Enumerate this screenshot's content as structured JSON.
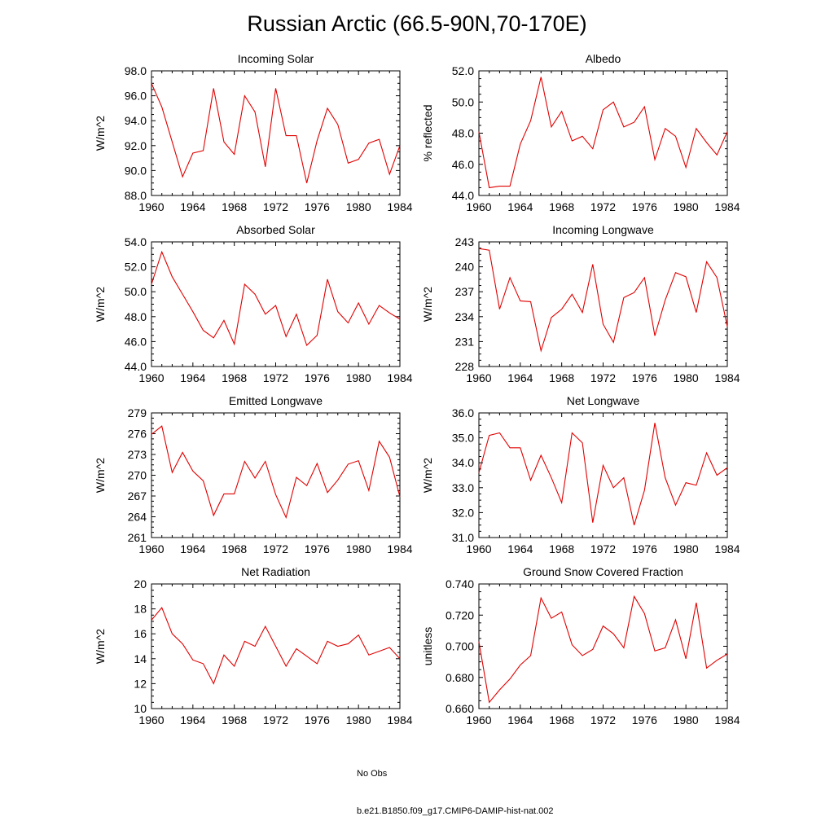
{
  "title": "Russian Arctic (66.5-90N,70-170E)",
  "colors": {
    "model_line": "#e00000",
    "obs_line": "#6666cc",
    "frame": "#000000"
  },
  "legend": [
    {
      "label": "No Obs",
      "style": "dashed",
      "color": "#6666cc"
    },
    {
      "label": "b.e21.B1850.f09_g17.CMIP6-DAMIP-hist-nat.002",
      "style": "solid",
      "color": "#e00000"
    }
  ],
  "chart_data": [
    {
      "type": "line",
      "title": "Incoming Solar",
      "ylabel": "W/m^2",
      "xlim": [
        1960,
        1984
      ],
      "ylim": [
        88,
        98
      ],
      "yticks": [
        88,
        90,
        92,
        94,
        96,
        98
      ],
      "ytick_labels": [
        "88.0",
        "90.0",
        "92.0",
        "94.0",
        "96.0",
        "98.0"
      ],
      "xticks": [
        1960,
        1964,
        1968,
        1972,
        1976,
        1980,
        1984
      ],
      "x": [
        1960,
        1961,
        1962,
        1963,
        1964,
        1965,
        1966,
        1967,
        1968,
        1969,
        1970,
        1971,
        1972,
        1973,
        1974,
        1975,
        1976,
        1977,
        1978,
        1979,
        1980,
        1981,
        1982,
        1983,
        1984
      ],
      "series": [
        {
          "values": [
            97.0,
            95.1,
            92.3,
            89.5,
            91.4,
            91.6,
            96.6,
            92.3,
            91.3,
            96.0,
            94.7,
            90.3,
            96.6,
            92.8,
            92.8,
            89.0,
            92.4,
            95.0,
            93.7,
            90.6,
            90.9,
            92.2,
            92.5,
            89.7,
            92.0
          ]
        }
      ]
    },
    {
      "type": "line",
      "title": "Albedo",
      "ylabel": "% reflected",
      "xlim": [
        1960,
        1984
      ],
      "ylim": [
        44,
        52
      ],
      "yticks": [
        44,
        46,
        48,
        50,
        52
      ],
      "ytick_labels": [
        "44.0",
        "46.0",
        "48.0",
        "50.0",
        "52.0"
      ],
      "xticks": [
        1960,
        1964,
        1968,
        1972,
        1976,
        1980,
        1984
      ],
      "x": [
        1960,
        1961,
        1962,
        1963,
        1964,
        1965,
        1966,
        1967,
        1968,
        1969,
        1970,
        1971,
        1972,
        1973,
        1974,
        1975,
        1976,
        1977,
        1978,
        1979,
        1980,
        1981,
        1982,
        1983,
        1984
      ],
      "series": [
        {
          "values": [
            48.1,
            44.5,
            44.6,
            44.6,
            47.3,
            48.8,
            51.6,
            48.4,
            49.4,
            47.5,
            47.8,
            47.0,
            49.5,
            50.0,
            48.4,
            48.7,
            49.7,
            46.3,
            48.3,
            47.8,
            45.8,
            48.3,
            47.4,
            46.6,
            48.1
          ]
        }
      ]
    },
    {
      "type": "line",
      "title": "Absorbed Solar",
      "ylabel": "W/m^2",
      "xlim": [
        1960,
        1984
      ],
      "ylim": [
        44,
        54
      ],
      "yticks": [
        44,
        46,
        48,
        50,
        52,
        54
      ],
      "ytick_labels": [
        "44.0",
        "46.0",
        "48.0",
        "50.0",
        "52.0",
        "54.0"
      ],
      "xticks": [
        1960,
        1964,
        1968,
        1972,
        1976,
        1980,
        1984
      ],
      "x": [
        1960,
        1961,
        1962,
        1963,
        1964,
        1965,
        1966,
        1967,
        1968,
        1969,
        1970,
        1971,
        1972,
        1973,
        1974,
        1975,
        1976,
        1977,
        1978,
        1979,
        1980,
        1981,
        1982,
        1983,
        1984
      ],
      "series": [
        {
          "values": [
            50.6,
            53.2,
            51.2,
            49.8,
            48.4,
            46.9,
            46.3,
            47.7,
            45.8,
            50.6,
            49.8,
            48.2,
            48.9,
            46.4,
            48.2,
            45.7,
            46.5,
            51.0,
            48.4,
            47.5,
            49.1,
            47.4,
            48.9,
            48.3,
            47.8
          ]
        }
      ]
    },
    {
      "type": "line",
      "title": "Incoming Longwave",
      "ylabel": "W/m^2",
      "xlim": [
        1960,
        1984
      ],
      "ylim": [
        228,
        243
      ],
      "yticks": [
        228,
        231,
        234,
        237,
        240,
        243
      ],
      "ytick_labels": [
        "228",
        "231",
        "234",
        "237",
        "240",
        "243"
      ],
      "xticks": [
        1960,
        1964,
        1968,
        1972,
        1976,
        1980,
        1984
      ],
      "x": [
        1960,
        1961,
        1962,
        1963,
        1964,
        1965,
        1966,
        1967,
        1968,
        1969,
        1970,
        1971,
        1972,
        1973,
        1974,
        1975,
        1976,
        1977,
        1978,
        1979,
        1980,
        1981,
        1982,
        1983,
        1984
      ],
      "series": [
        {
          "values": [
            242.2,
            242.0,
            234.9,
            238.7,
            235.9,
            235.8,
            229.9,
            233.9,
            234.9,
            236.7,
            234.5,
            240.3,
            233.1,
            230.9,
            236.3,
            236.9,
            238.7,
            231.7,
            236.0,
            239.3,
            238.8,
            234.5,
            240.6,
            238.7,
            232.8
          ]
        }
      ]
    },
    {
      "type": "line",
      "title": "Emitted Longwave",
      "ylabel": "W/m^2",
      "xlim": [
        1960,
        1984
      ],
      "ylim": [
        261,
        279
      ],
      "yticks": [
        261,
        264,
        267,
        270,
        273,
        276,
        279
      ],
      "ytick_labels": [
        "261",
        "264",
        "267",
        "270",
        "273",
        "276",
        "279"
      ],
      "xticks": [
        1960,
        1964,
        1968,
        1972,
        1976,
        1980,
        1984
      ],
      "x": [
        1960,
        1961,
        1962,
        1963,
        1964,
        1965,
        1966,
        1967,
        1968,
        1969,
        1970,
        1971,
        1972,
        1973,
        1974,
        1975,
        1976,
        1977,
        1978,
        1979,
        1980,
        1981,
        1982,
        1983,
        1984
      ],
      "series": [
        {
          "values": [
            275.9,
            277.1,
            270.4,
            273.3,
            270.6,
            269.2,
            264.2,
            267.3,
            267.3,
            272.0,
            269.6,
            272.0,
            267.2,
            263.9,
            269.7,
            268.5,
            271.7,
            267.5,
            269.3,
            271.6,
            272.1,
            267.8,
            274.9,
            272.6,
            266.9
          ]
        }
      ]
    },
    {
      "type": "line",
      "title": "Net Longwave",
      "ylabel": "W/m^2",
      "xlim": [
        1960,
        1984
      ],
      "ylim": [
        31,
        36
      ],
      "yticks": [
        31,
        32,
        33,
        34,
        35,
        36
      ],
      "ytick_labels": [
        "31.0",
        "32.0",
        "33.0",
        "34.0",
        "35.0",
        "36.0"
      ],
      "xticks": [
        1960,
        1964,
        1968,
        1972,
        1976,
        1980,
        1984
      ],
      "x": [
        1960,
        1961,
        1962,
        1963,
        1964,
        1965,
        1966,
        1967,
        1968,
        1969,
        1970,
        1971,
        1972,
        1973,
        1974,
        1975,
        1976,
        1977,
        1978,
        1979,
        1980,
        1981,
        1982,
        1983,
        1984
      ],
      "series": [
        {
          "values": [
            33.6,
            35.1,
            35.2,
            34.6,
            34.6,
            33.3,
            34.3,
            33.4,
            32.4,
            35.2,
            34.8,
            31.6,
            33.9,
            33.0,
            33.4,
            31.5,
            32.9,
            35.6,
            33.4,
            32.3,
            33.2,
            33.1,
            34.4,
            33.5,
            33.8
          ]
        }
      ]
    },
    {
      "type": "line",
      "title": "Net Radiation",
      "ylabel": "W/m^2",
      "xlim": [
        1960,
        1984
      ],
      "ylim": [
        10,
        20
      ],
      "yticks": [
        10,
        12,
        14,
        16,
        18,
        20
      ],
      "ytick_labels": [
        "10",
        "12",
        "14",
        "16",
        "18",
        "20"
      ],
      "xticks": [
        1960,
        1964,
        1968,
        1972,
        1976,
        1980,
        1984
      ],
      "x": [
        1960,
        1961,
        1962,
        1963,
        1964,
        1965,
        1966,
        1967,
        1968,
        1969,
        1970,
        1971,
        1972,
        1973,
        1974,
        1975,
        1976,
        1977,
        1978,
        1979,
        1980,
        1981,
        1982,
        1983,
        1984
      ],
      "series": [
        {
          "values": [
            17.1,
            18.1,
            16.0,
            15.2,
            13.9,
            13.6,
            12.0,
            14.3,
            13.4,
            15.4,
            15.0,
            16.6,
            15.0,
            13.4,
            14.8,
            14.2,
            13.6,
            15.4,
            15.0,
            15.2,
            15.9,
            14.3,
            14.6,
            14.9,
            14.0
          ]
        }
      ]
    },
    {
      "type": "line",
      "title": "Ground Snow Covered Fraction",
      "ylabel": "unitless",
      "xlim": [
        1960,
        1984
      ],
      "ylim": [
        0.66,
        0.74
      ],
      "yticks": [
        0.66,
        0.68,
        0.7,
        0.72,
        0.74
      ],
      "ytick_labels": [
        "0.660",
        "0.680",
        "0.700",
        "0.720",
        "0.740"
      ],
      "xticks": [
        1960,
        1964,
        1968,
        1972,
        1976,
        1980,
        1984
      ],
      "x": [
        1960,
        1961,
        1962,
        1963,
        1964,
        1965,
        1966,
        1967,
        1968,
        1969,
        1970,
        1971,
        1972,
        1973,
        1974,
        1975,
        1976,
        1977,
        1978,
        1979,
        1980,
        1981,
        1982,
        1983,
        1984
      ],
      "series": [
        {
          "values": [
            0.703,
            0.664,
            0.672,
            0.679,
            0.688,
            0.694,
            0.731,
            0.718,
            0.722,
            0.701,
            0.694,
            0.698,
            0.713,
            0.708,
            0.699,
            0.732,
            0.721,
            0.697,
            0.699,
            0.717,
            0.692,
            0.728,
            0.686,
            0.691,
            0.695
          ]
        }
      ]
    }
  ]
}
